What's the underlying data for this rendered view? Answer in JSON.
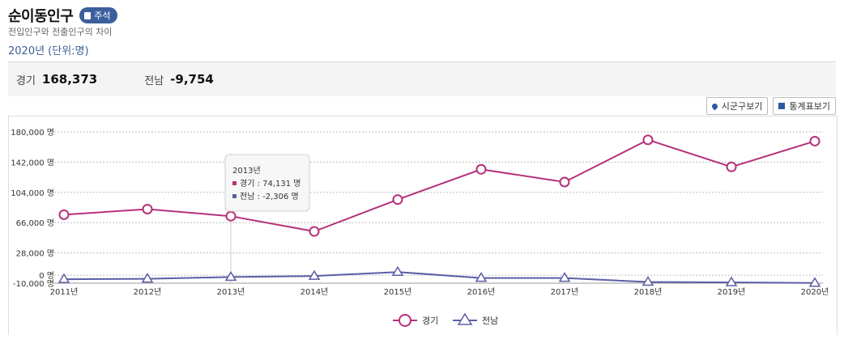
{
  "header": {
    "title": "순이동인구",
    "note_label": "주석",
    "subtitle": "전입인구와 전출인구의 차이",
    "year_unit": "2020년 (단위:명)"
  },
  "summary": {
    "region1_label": "경기",
    "region1_value": "168,373",
    "region2_label": "전남",
    "region2_value": "-9,754"
  },
  "buttons": {
    "map_label": "시군구보기",
    "table_label": "통계표보기"
  },
  "tooltip": {
    "year": "2013년",
    "line1": "경기 : 74,131 명",
    "line2": "전남 : -2,306 명"
  },
  "chart_data": {
    "type": "line",
    "categories": [
      "2011년",
      "2012년",
      "2013년",
      "2014년",
      "2015년",
      "2016년",
      "2017년",
      "2018년",
      "2019년",
      "2020년"
    ],
    "series": [
      {
        "name": "경기",
        "color": "#b5307a",
        "marker": "circle",
        "values": [
          76000,
          83000,
          74131,
          55000,
          95000,
          133000,
          117000,
          170000,
          136000,
          168373
        ]
      },
      {
        "name": "전남",
        "color": "#5b5ea6",
        "marker": "triangle",
        "values": [
          -5000,
          -4500,
          -2306,
          -1000,
          4000,
          -3500,
          -3500,
          -8500,
          -9000,
          -9754
        ]
      }
    ],
    "y_ticks": [
      {
        "value": 180000,
        "label": "180,000 명"
      },
      {
        "value": 142000,
        "label": "142,000 명"
      },
      {
        "value": 104000,
        "label": "104,000 명"
      },
      {
        "value": 66000,
        "label": "66,000 명"
      },
      {
        "value": 28000,
        "label": "28,000 명"
      },
      {
        "value": 0,
        "label": "0 명"
      },
      {
        "value": -10000,
        "label": "-10,000 명"
      }
    ],
    "ylim": [
      -10000,
      180000
    ],
    "grid": true,
    "legend_position": "bottom-center"
  }
}
